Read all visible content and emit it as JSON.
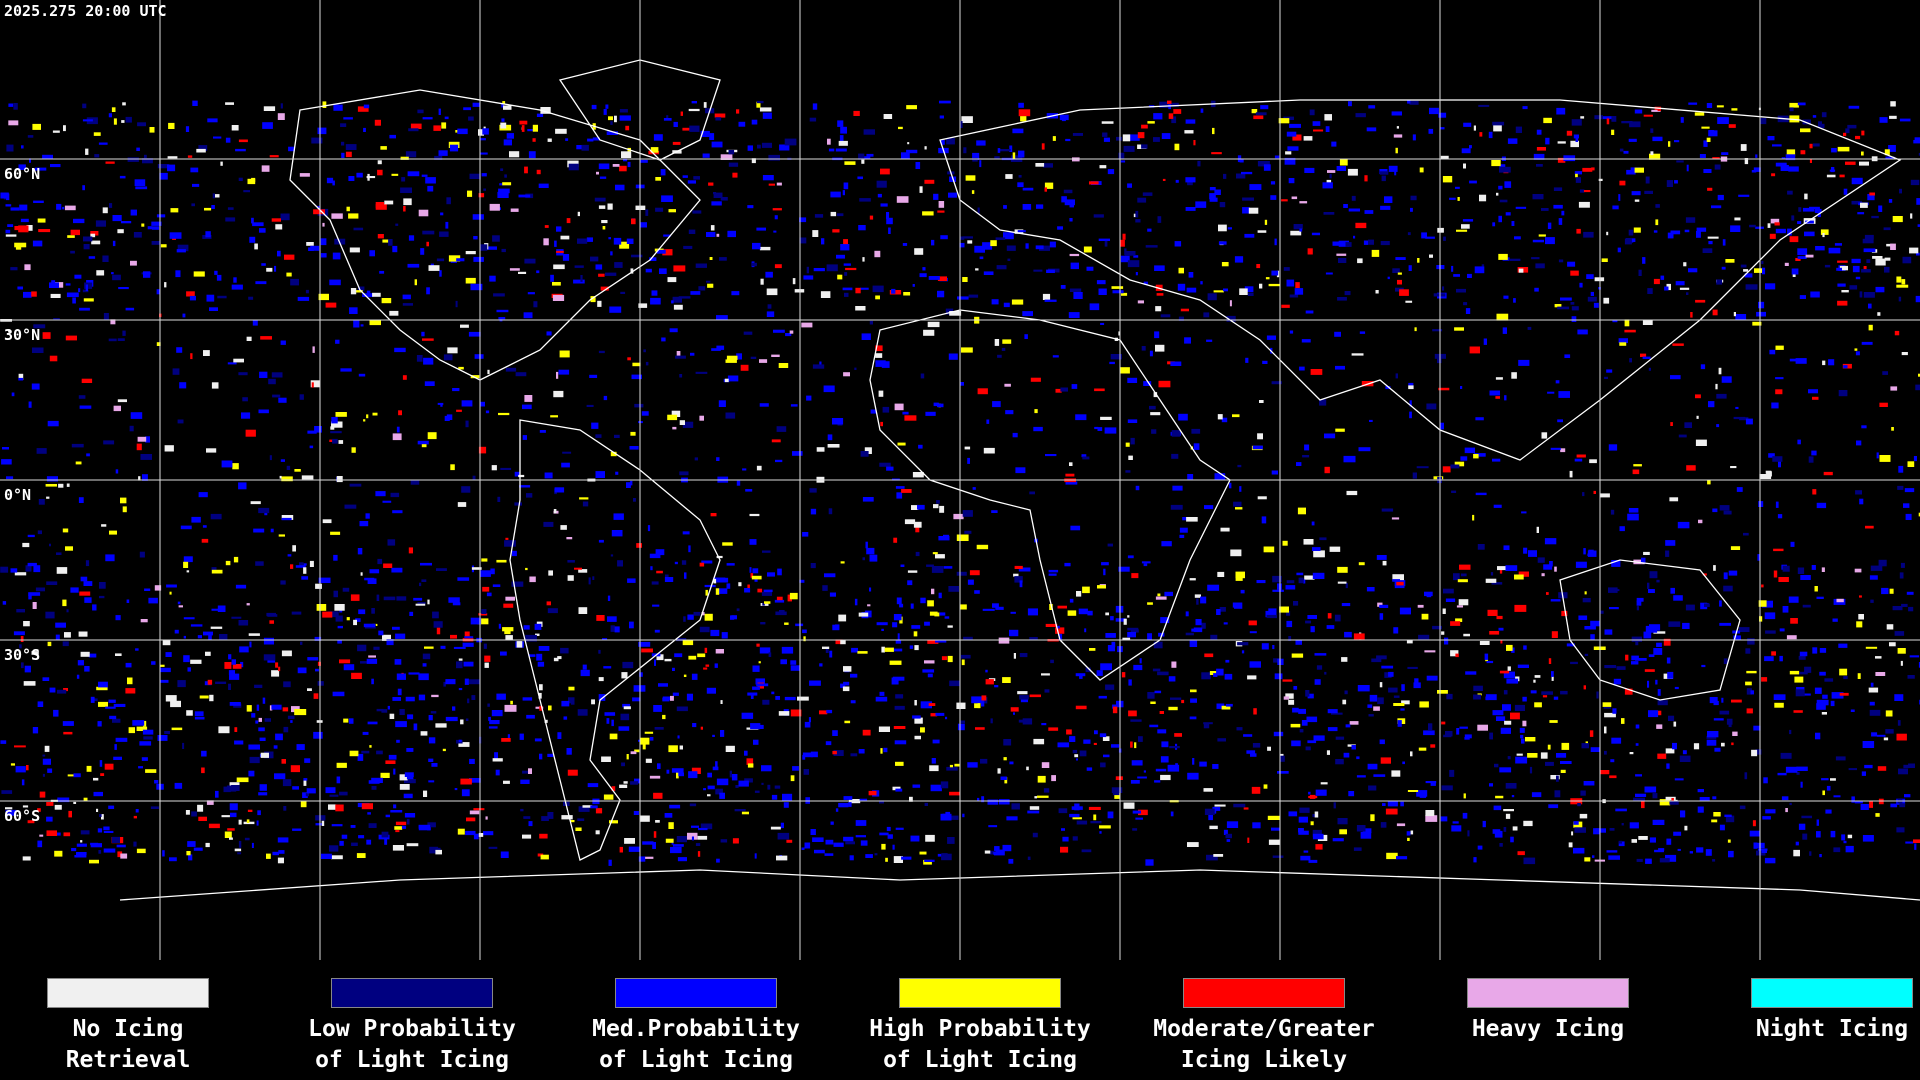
{
  "header": {
    "timestamp": "2025.275 20:00 UTC"
  },
  "map": {
    "latitude_labels": [
      "60°N",
      "30°N",
      "0°N",
      "30°S",
      "60°S"
    ]
  },
  "legend": {
    "items": [
      {
        "label": "No Icing\nRetrieval",
        "color": "#f0f0f0"
      },
      {
        "label": "Low Probability\nof Light Icing",
        "color": "#000080"
      },
      {
        "label": "Med.Probability\nof Light Icing",
        "color": "#0000ff"
      },
      {
        "label": "High Probability\nof Light Icing",
        "color": "#ffff00"
      },
      {
        "label": "Moderate/Greater\nIcing Likely",
        "color": "#ff0000"
      },
      {
        "label": "Heavy Icing",
        "color": "#e8a8e8"
      },
      {
        "label": "Night Icing",
        "color": "#00ffff"
      }
    ]
  }
}
